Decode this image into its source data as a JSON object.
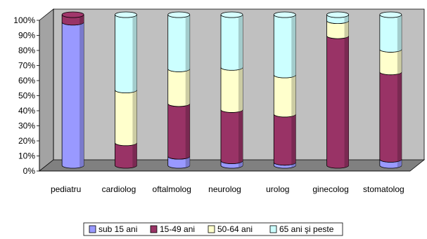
{
  "chart_data": {
    "type": "bar",
    "stacked": true,
    "percent_stacked": true,
    "three_d": true,
    "categories": [
      "pediatru",
      "cardiolog",
      "oftalmolog",
      "neurolog",
      "urolog",
      "ginecolog",
      "stomatolog"
    ],
    "series": [
      {
        "name": "sub 15 ani",
        "color": "#9999ff",
        "values": [
          95,
          0,
          6,
          3,
          2,
          0,
          4
        ]
      },
      {
        "name": "15-49 ani",
        "color": "#993366",
        "values": [
          5,
          15,
          35,
          34,
          32,
          86,
          58
        ]
      },
      {
        "name": "50-64 ani",
        "color": "#ffffcc",
        "values": [
          0,
          35,
          23,
          28,
          26,
          10,
          15
        ]
      },
      {
        "name": "65 ani şi peste",
        "color": "#ccffff",
        "values": [
          0,
          50,
          36,
          35,
          40,
          4,
          23
        ]
      }
    ],
    "ylim": [
      0,
      100
    ],
    "yticks": [
      "0%",
      "10%",
      "20%",
      "30%",
      "40%",
      "50%",
      "60%",
      "70%",
      "80%",
      "90%",
      "100%"
    ],
    "grid": false,
    "legend_position": "bottom",
    "colors": {
      "wall": "#c0c0c0",
      "floor": "#808080",
      "edge": "#000000"
    }
  }
}
